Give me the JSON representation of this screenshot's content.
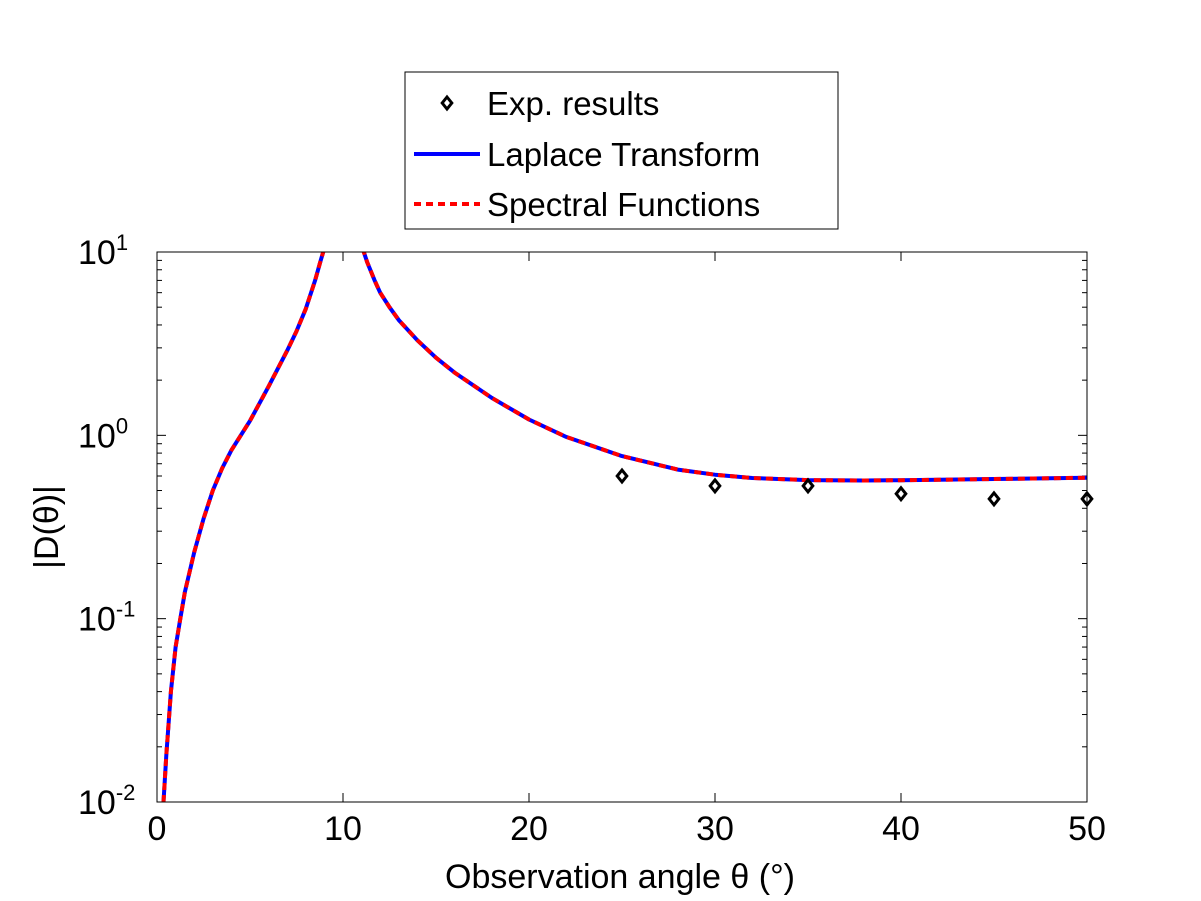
{
  "chart_data": {
    "type": "line",
    "title": "",
    "xlabel": "Observation angle θ (°)",
    "ylabel": "|D(θ)|",
    "xlim": [
      0,
      50
    ],
    "ylim": [
      0.01,
      10
    ],
    "yscale": "log",
    "grid": false,
    "legend_position": "top-center, above the axes",
    "x_ticks": [
      {
        "value": 0,
        "label": "0"
      },
      {
        "value": 10,
        "label": "10"
      },
      {
        "value": 20,
        "label": "20"
      },
      {
        "value": 30,
        "label": "30"
      },
      {
        "value": 40,
        "label": "40"
      },
      {
        "value": 50,
        "label": "50"
      }
    ],
    "y_ticks": [
      {
        "value": 0.01,
        "base": "10",
        "exponent": "-2"
      },
      {
        "value": 0.1,
        "base": "10",
        "exponent": "-1"
      },
      {
        "value": 1,
        "base": "10",
        "exponent": "0"
      },
      {
        "value": 10,
        "base": "10",
        "exponent": "1"
      }
    ],
    "series": [
      {
        "name": "Exp. results",
        "kind": "marker",
        "marker": "diamond",
        "color": "#000000",
        "x": [
          25,
          30,
          35,
          40,
          45,
          50
        ],
        "y": [
          0.6,
          0.53,
          0.53,
          0.48,
          0.45,
          0.45
        ]
      },
      {
        "name": "Laplace Transform",
        "kind": "line",
        "style": "solid",
        "color": "#0000ff",
        "segments": [
          {
            "x": [
              0.35,
              0.5,
              0.75,
              1,
              1.25,
              1.5,
              2,
              2.5,
              3,
              3.5,
              4,
              5,
              6,
              7,
              7.5,
              8,
              8.5,
              8.8,
              9.0
            ],
            "y": [
              0.01,
              0.018,
              0.04,
              0.07,
              0.1,
              0.14,
              0.23,
              0.35,
              0.5,
              0.66,
              0.83,
              1.2,
              1.85,
              2.9,
              3.7,
              4.9,
              7.0,
              9.0,
              10.5
            ]
          },
          {
            "x": [
              11.05,
              11.3,
              11.7,
              12,
              12.5,
              13,
              14,
              15,
              16,
              18,
              20,
              22,
              25,
              28,
              30,
              32,
              35,
              38,
              40,
              42,
              45,
              48,
              50
            ],
            "y": [
              10.5,
              8.8,
              7.0,
              6.0,
              5.0,
              4.25,
              3.3,
              2.65,
              2.2,
              1.6,
              1.22,
              0.98,
              0.77,
              0.65,
              0.61,
              0.585,
              0.57,
              0.567,
              0.569,
              0.572,
              0.578,
              0.583,
              0.587
            ]
          }
        ]
      },
      {
        "name": "Spectral Functions",
        "kind": "line",
        "style": "dashed",
        "color": "#ff0000",
        "segments": [
          {
            "x": [
              0.35,
              0.5,
              0.75,
              1,
              1.25,
              1.5,
              2,
              2.5,
              3,
              3.5,
              4,
              5,
              6,
              7,
              7.5,
              8,
              8.5,
              8.8,
              9.0
            ],
            "y": [
              0.01,
              0.018,
              0.04,
              0.07,
              0.1,
              0.14,
              0.23,
              0.35,
              0.5,
              0.66,
              0.83,
              1.2,
              1.85,
              2.9,
              3.7,
              4.9,
              7.0,
              9.0,
              10.5
            ]
          },
          {
            "x": [
              11.05,
              11.3,
              11.7,
              12,
              12.5,
              13,
              14,
              15,
              16,
              18,
              20,
              22,
              25,
              28,
              30,
              32,
              35,
              38,
              40,
              42,
              45,
              48,
              50
            ],
            "y": [
              10.5,
              8.8,
              7.0,
              6.0,
              5.0,
              4.25,
              3.3,
              2.65,
              2.2,
              1.6,
              1.22,
              0.98,
              0.77,
              0.65,
              0.61,
              0.585,
              0.57,
              0.567,
              0.569,
              0.572,
              0.578,
              0.583,
              0.587
            ]
          }
        ]
      }
    ]
  }
}
